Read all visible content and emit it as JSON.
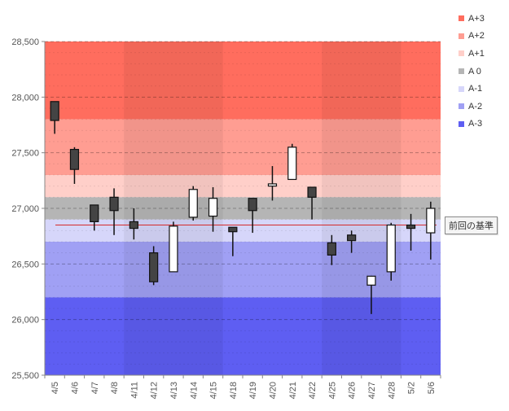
{
  "chart_data": {
    "type": "candlestick",
    "title": "",
    "xlabel": "",
    "ylabel": "",
    "ylim": [
      25500,
      28500
    ],
    "yticks": [
      25500,
      26000,
      26500,
      27000,
      27500,
      28000,
      28500
    ],
    "ytick_labels": [
      "25,500",
      "26,000",
      "26,500",
      "27,000",
      "27,500",
      "28,000",
      "28,500"
    ],
    "categories": [
      "4/5",
      "4/6",
      "4/7",
      "4/8",
      "4/11",
      "4/12",
      "4/13",
      "4/14",
      "4/15",
      "4/18",
      "4/19",
      "4/20",
      "4/21",
      "4/22",
      "4/25",
      "4/26",
      "4/27",
      "4/28",
      "5/2",
      "5/6"
    ],
    "candles": [
      {
        "date": "4/5",
        "open": 27960,
        "high": 27960,
        "low": 27670,
        "close": 27790
      },
      {
        "date": "4/6",
        "open": 27530,
        "high": 27550,
        "low": 27220,
        "close": 27350
      },
      {
        "date": "4/7",
        "open": 27030,
        "high": 27030,
        "low": 26800,
        "close": 26880
      },
      {
        "date": "4/8",
        "open": 27100,
        "high": 27180,
        "low": 26760,
        "close": 26980
      },
      {
        "date": "4/11",
        "open": 26880,
        "high": 27000,
        "low": 26720,
        "close": 26820
      },
      {
        "date": "4/12",
        "open": 26600,
        "high": 26660,
        "low": 26310,
        "close": 26340
      },
      {
        "date": "4/13",
        "open": 26430,
        "high": 26880,
        "low": 26430,
        "close": 26840
      },
      {
        "date": "4/14",
        "open": 26920,
        "high": 27200,
        "low": 26890,
        "close": 27170
      },
      {
        "date": "4/15",
        "open": 26930,
        "high": 27190,
        "low": 26790,
        "close": 27090
      },
      {
        "date": "4/18",
        "open": 26830,
        "high": 26830,
        "low": 26570,
        "close": 26790
      },
      {
        "date": "4/19",
        "open": 27090,
        "high": 27090,
        "low": 26780,
        "close": 26980
      },
      {
        "date": "4/20",
        "open": 27200,
        "high": 27380,
        "low": 27070,
        "close": 27220
      },
      {
        "date": "4/21",
        "open": 27260,
        "high": 27580,
        "low": 27260,
        "close": 27550
      },
      {
        "date": "4/22",
        "open": 27190,
        "high": 27190,
        "low": 26900,
        "close": 27100
      },
      {
        "date": "4/25",
        "open": 26690,
        "high": 26760,
        "low": 26490,
        "close": 26580
      },
      {
        "date": "4/26",
        "open": 26760,
        "high": 26800,
        "low": 26600,
        "close": 26710
      },
      {
        "date": "4/27",
        "open": 26310,
        "high": 26390,
        "low": 26050,
        "close": 26390
      },
      {
        "date": "4/28",
        "open": 26430,
        "high": 26870,
        "low": 26350,
        "close": 26850
      },
      {
        "date": "5/2",
        "open": 26850,
        "high": 26950,
        "low": 26620,
        "close": 26820
      },
      {
        "date": "5/6",
        "open": 26780,
        "high": 27060,
        "low": 26540,
        "close": 27000
      }
    ],
    "bands": [
      {
        "name": "A+3",
        "from": 27800,
        "to": 28500,
        "color": "#ff6d5e"
      },
      {
        "name": "A+2",
        "from": 27300,
        "to": 27800,
        "color": "#ff9d92"
      },
      {
        "name": "A+1",
        "from": 27100,
        "to": 27300,
        "color": "#ffcfc9"
      },
      {
        "name": "A 0",
        "from": 26900,
        "to": 27100,
        "color": "#b5b5b5"
      },
      {
        "name": "A-1",
        "from": 26700,
        "to": 26900,
        "color": "#d6d6fa"
      },
      {
        "name": "A-2",
        "from": 26200,
        "to": 26700,
        "color": "#a0a0f4"
      },
      {
        "name": "A-3",
        "from": 25500,
        "to": 26200,
        "color": "#5e5ef2"
      }
    ],
    "shaded_weeks": [
      [
        "4/11",
        "4/15"
      ],
      [
        "4/25",
        "4/28"
      ]
    ],
    "reference_line": {
      "value": 26850,
      "label": "前回の基準",
      "color": "#d42a2a"
    },
    "legend": {
      "position": "right",
      "entries": [
        "A+3",
        "A+2",
        "A+1",
        "A 0",
        "A-1",
        "A-2",
        "A-3"
      ]
    }
  }
}
